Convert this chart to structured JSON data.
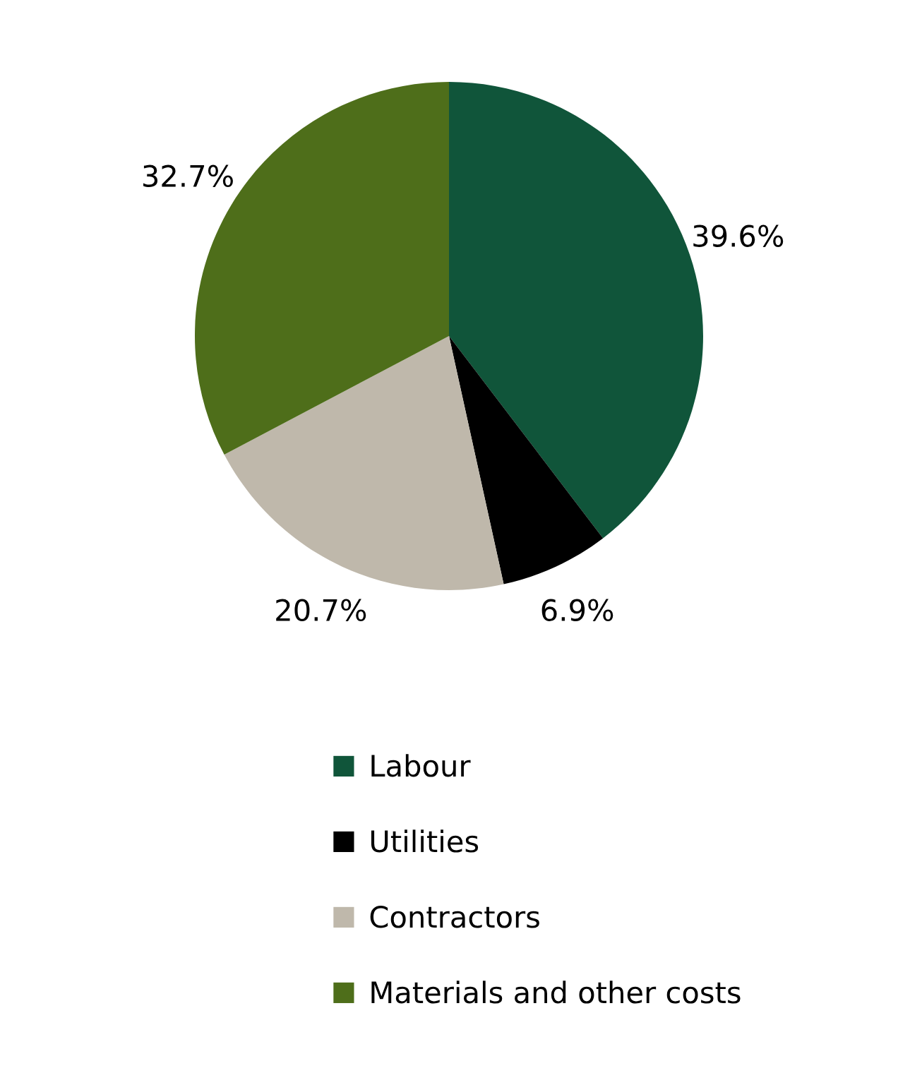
{
  "chart_data": {
    "type": "pie",
    "categories": [
      "Labour",
      "Utilities",
      "Contractors",
      "Materials and other costs"
    ],
    "values": [
      39.6,
      6.9,
      20.7,
      32.7
    ],
    "value_labels": [
      "39.6%",
      "6.9%",
      "20.7%",
      "32.7%"
    ],
    "colors": [
      "#10553a",
      "#000000",
      "#bfb8ab",
      "#4e6e1a"
    ],
    "legend": "bottom"
  }
}
